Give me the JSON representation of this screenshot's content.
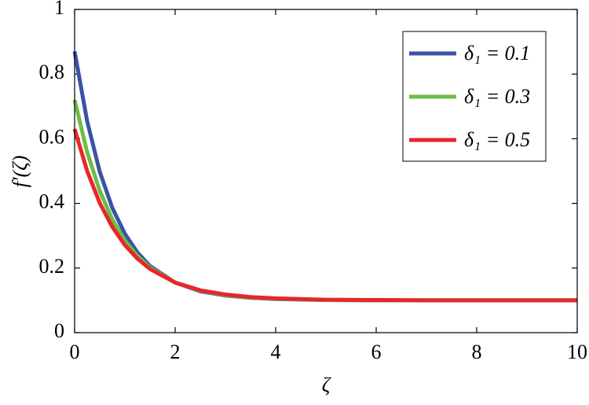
{
  "chart_data": {
    "type": "line",
    "xlabel": "ζ",
    "ylabel": "f′(ζ)",
    "x": [
      0,
      0.25,
      0.5,
      0.75,
      1,
      1.25,
      1.5,
      2,
      2.5,
      3,
      3.5,
      4,
      5,
      6,
      7,
      8,
      9,
      10
    ],
    "series": [
      {
        "name": "δ₁ = 0.1",
        "color": "#3a53a4",
        "values": [
          0.87,
          0.654,
          0.498,
          0.386,
          0.306,
          0.248,
          0.206,
          0.155,
          0.128,
          0.115,
          0.108,
          0.104,
          0.101,
          0.1,
          0.1,
          0.1,
          0.1,
          0.1
        ]
      },
      {
        "name": "δ₁ = 0.3",
        "color": "#6cbd45",
        "values": [
          0.72,
          0.558,
          0.439,
          0.35,
          0.285,
          0.237,
          0.201,
          0.155,
          0.13,
          0.116,
          0.109,
          0.105,
          0.101,
          0.1,
          0.1,
          0.1,
          0.1,
          0.1
        ]
      },
      {
        "name": "δ₁ = 0.5",
        "color": "#e8262a",
        "values": [
          0.63,
          0.5,
          0.401,
          0.327,
          0.271,
          0.229,
          0.197,
          0.155,
          0.131,
          0.118,
          0.11,
          0.106,
          0.102,
          0.101,
          0.1,
          0.1,
          0.1,
          0.1
        ]
      }
    ],
    "xlim": [
      0,
      10
    ],
    "xticks": [
      0,
      2,
      4,
      6,
      8,
      10
    ],
    "ylim": [
      0,
      1
    ],
    "yticks": [
      0,
      0.2,
      0.4,
      0.6,
      0.8,
      1
    ],
    "legend": "upper-right",
    "grid": false
  }
}
